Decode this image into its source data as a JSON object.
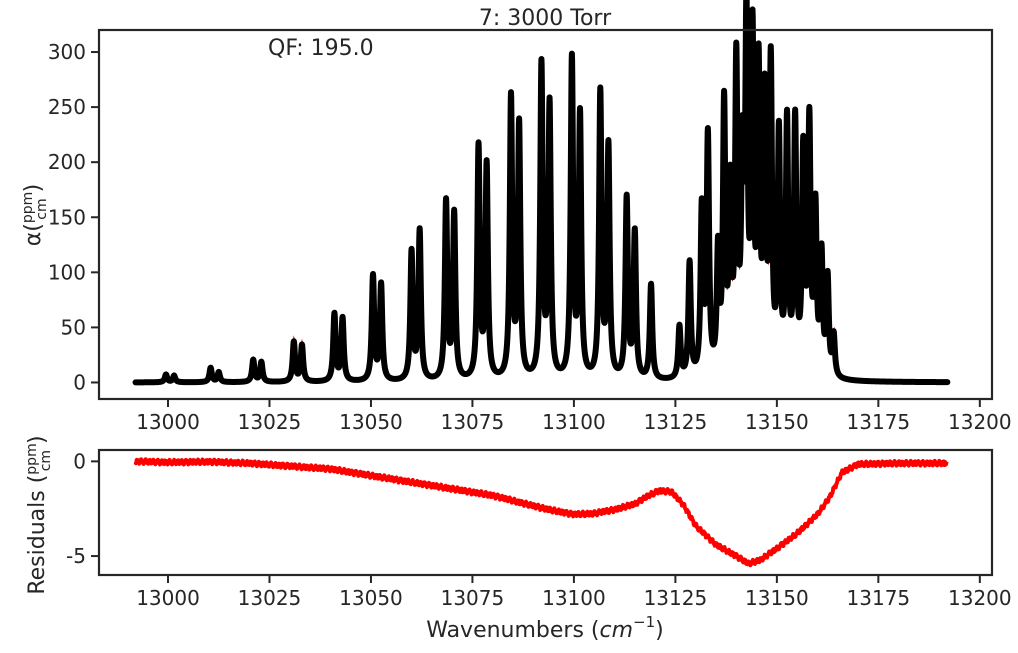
{
  "chart_data": [
    {
      "type": "scatter",
      "title": "7: 3000 Torr",
      "annotation": "QF: 195.0",
      "ylabel": "α(ppm/cm)",
      "ylabel_main": "α(",
      "ylabel_num": "ppm",
      "ylabel_den": "cm",
      "ylabel_close": ")",
      "xlim": [
        12983,
        13203
      ],
      "ylim": [
        -15,
        320
      ],
      "xticks": [
        13000,
        13025,
        13050,
        13075,
        13100,
        13125,
        13150,
        13175,
        13200
      ],
      "yticks": [
        0,
        50,
        100,
        150,
        200,
        250,
        300
      ],
      "x_range": [
        12992,
        13192
      ],
      "series": [
        {
          "role": "measured",
          "color": "#000000",
          "peaks": [
            [
              12999.5,
              7
            ],
            [
              13001.5,
              6
            ],
            [
              13010.5,
              13
            ],
            [
              13012.5,
              9
            ],
            [
              13021,
              20
            ],
            [
              13023,
              18
            ],
            [
              13031,
              36
            ],
            [
              13033,
              33
            ],
            [
              13041,
              61
            ],
            [
              13043,
              57
            ],
            [
              13050.5,
              95
            ],
            [
              13052.5,
              87
            ],
            [
              13060,
              116
            ],
            [
              13062,
              135
            ],
            [
              13068.5,
              161
            ],
            [
              13070.5,
              150
            ],
            [
              13076.5,
              210
            ],
            [
              13078.5,
              193
            ],
            [
              13084.5,
              254
            ],
            [
              13086.5,
              229
            ],
            [
              13092,
              283
            ],
            [
              13094,
              247
            ],
            [
              13099.5,
              288
            ],
            [
              13101.5,
              237
            ],
            [
              13106.5,
              258
            ],
            [
              13108.5,
              209
            ],
            [
              13113,
              163
            ],
            [
              13115,
              132
            ],
            [
              13119,
              86
            ],
            [
              13126,
              47
            ],
            [
              13128.5,
              104
            ],
            [
              13131.5,
              150
            ],
            [
              13133,
              215
            ],
            [
              13135.5,
              108
            ],
            [
              13137,
              240
            ],
            [
              13138.5,
              160
            ],
            [
              13140,
              275
            ],
            [
              13141.5,
              180
            ],
            [
              13142.5,
              306
            ],
            [
              13144,
              295
            ],
            [
              13145.5,
              266
            ],
            [
              13147,
              240
            ],
            [
              13148.5,
              275
            ],
            [
              13150.5,
              213
            ],
            [
              13152.5,
              226
            ],
            [
              13154.5,
              227
            ],
            [
              13156.5,
              198
            ],
            [
              13158,
              225
            ],
            [
              13159.5,
              147
            ],
            [
              13161,
              107
            ],
            [
              13162.5,
              88
            ],
            [
              13164,
              37
            ]
          ]
        },
        {
          "role": "model",
          "color": "#ff0000"
        }
      ]
    },
    {
      "type": "line",
      "xlabel": "Wavenumbers (cm⁻¹)",
      "xlabel_text": "Wavenumbers (",
      "xlabel_unit": "cm",
      "xlabel_exp": "−1",
      "xlabel_close": ")",
      "ylabel": "Residuals (ppm/cm)",
      "ylabel_main": "Residuals (",
      "ylabel_num": "ppm",
      "ylabel_den": "cm",
      "ylabel_close": ")",
      "xlim": [
        12983,
        13203
      ],
      "ylim": [
        -6.0,
        0.6
      ],
      "xticks": [
        13000,
        13025,
        13050,
        13075,
        13100,
        13125,
        13150,
        13175,
        13200
      ],
      "yticks": [
        -5,
        0
      ],
      "series": [
        {
          "color": "#ff0000",
          "x": [
            12992,
            13000,
            13010,
            13020,
            13030,
            13040,
            13050,
            13060,
            13070,
            13080,
            13090,
            13095,
            13100,
            13105,
            13110,
            13115,
            13118,
            13121,
            13124,
            13127,
            13130,
            13135,
            13140,
            13143,
            13146,
            13150,
            13155,
            13160,
            13163,
            13166,
            13170,
            13180,
            13192
          ],
          "y": [
            0,
            -0.05,
            -0.02,
            -0.1,
            -0.25,
            -0.4,
            -0.75,
            -1.1,
            -1.45,
            -1.8,
            -2.35,
            -2.6,
            -2.8,
            -2.75,
            -2.55,
            -2.25,
            -1.85,
            -1.55,
            -1.6,
            -2.3,
            -3.4,
            -4.4,
            -5.0,
            -5.4,
            -5.2,
            -4.6,
            -3.8,
            -2.8,
            -1.9,
            -0.6,
            -0.15,
            -0.1,
            -0.1
          ]
        }
      ]
    }
  ]
}
